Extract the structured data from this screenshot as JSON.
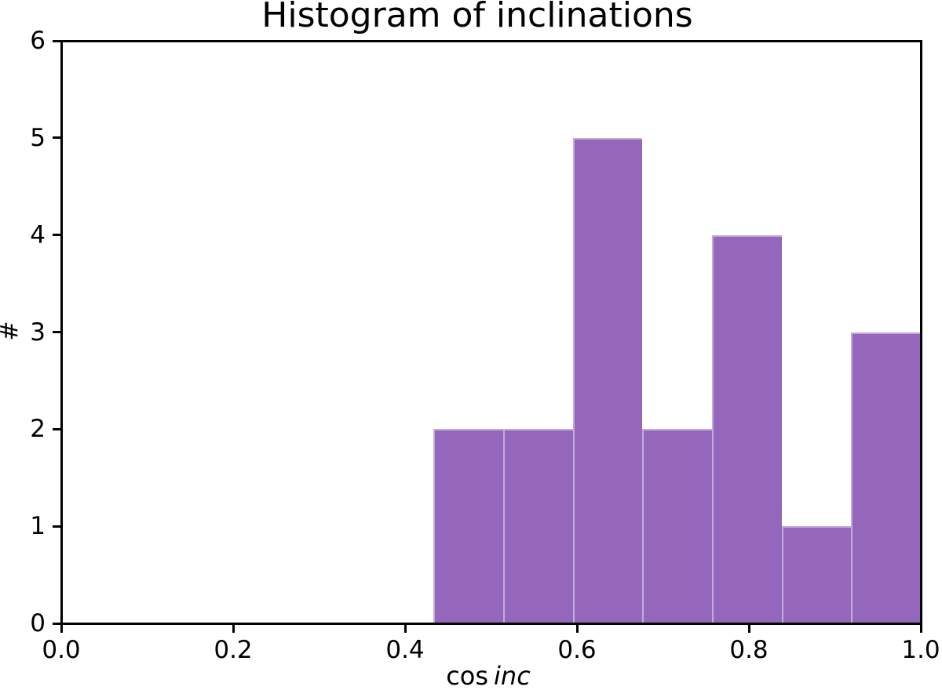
{
  "figure": {
    "title": "Histogram of inclinations",
    "xlabel_roman": "cos",
    "xlabel_italic": "inc",
    "ylabel": "#",
    "background_color": "#ffffff",
    "spine_color": "#000000",
    "text_color": "#000000"
  },
  "chart_data": {
    "type": "bar",
    "subtype": "histogram",
    "title": "Histogram of inclinations",
    "xlabel": "cos inc",
    "ylabel": "#",
    "bar_color": "#9467bd",
    "bin_edges": [
      0.433,
      0.514,
      0.595,
      0.676,
      0.757,
      0.838,
      0.919,
      1.0
    ],
    "counts": [
      2,
      2,
      5,
      2,
      4,
      1,
      3
    ],
    "xlim": [
      0.0,
      1.0
    ],
    "ylim": [
      0,
      6
    ],
    "xtick_values": [
      0.0,
      0.2,
      0.4,
      0.6,
      0.8,
      1.0
    ],
    "xtick_labels": [
      "0.0",
      "0.2",
      "0.4",
      "0.6",
      "0.8",
      "1.0"
    ],
    "ytick_values": [
      0,
      1,
      2,
      3,
      4,
      5,
      6
    ],
    "ytick_labels": [
      "0",
      "1",
      "2",
      "3",
      "4",
      "5",
      "6"
    ],
    "grid": false,
    "legend": false
  }
}
